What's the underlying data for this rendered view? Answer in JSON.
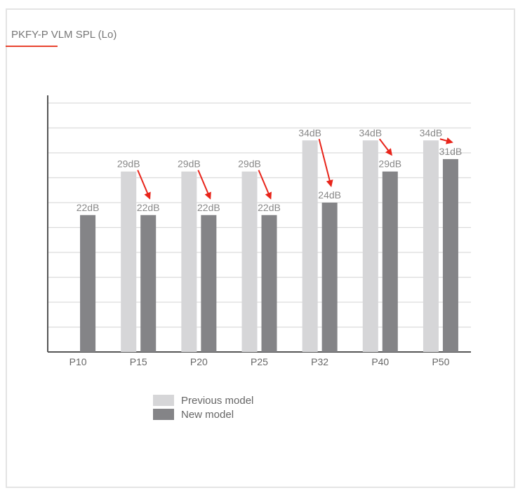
{
  "title": "PKFY-P VLM SPL (Lo)",
  "colors": {
    "accent": "#e8432e",
    "previous": "#d6d6d8",
    "new": "#848487",
    "label_text": "#888888",
    "arrow": "#e8241a",
    "grid": "#dcdcdc",
    "axis": "#555555"
  },
  "legend": {
    "previous_label": "Previous model",
    "new_label": "New model"
  },
  "chart_data": {
    "type": "bar",
    "title": "PKFY-P VLM SPL (Lo)",
    "categories": [
      "P10",
      "P15",
      "P20",
      "P25",
      "P32",
      "P40",
      "P50"
    ],
    "series": [
      {
        "name": "Previous model",
        "values": [
          null,
          29,
          29,
          29,
          34,
          34,
          34
        ]
      },
      {
        "name": "New model",
        "values": [
          22,
          22,
          22,
          22,
          24,
          29,
          31
        ]
      }
    ],
    "data_labels": {
      "previous": [
        "",
        "29dB",
        "29dB",
        "29dB",
        "34dB",
        "34dB",
        "34dB"
      ],
      "new": [
        "22dB",
        "22dB",
        "22dB",
        "22dB",
        "24dB",
        "29dB",
        "31dB"
      ]
    },
    "annotations": "red arrows point from each previous-model value to the new-model value",
    "xlabel": "",
    "ylabel": "",
    "ylim": [
      0,
      40
    ],
    "y_ticks_labeled": false,
    "grid": true,
    "legend_position": "bottom-left"
  }
}
